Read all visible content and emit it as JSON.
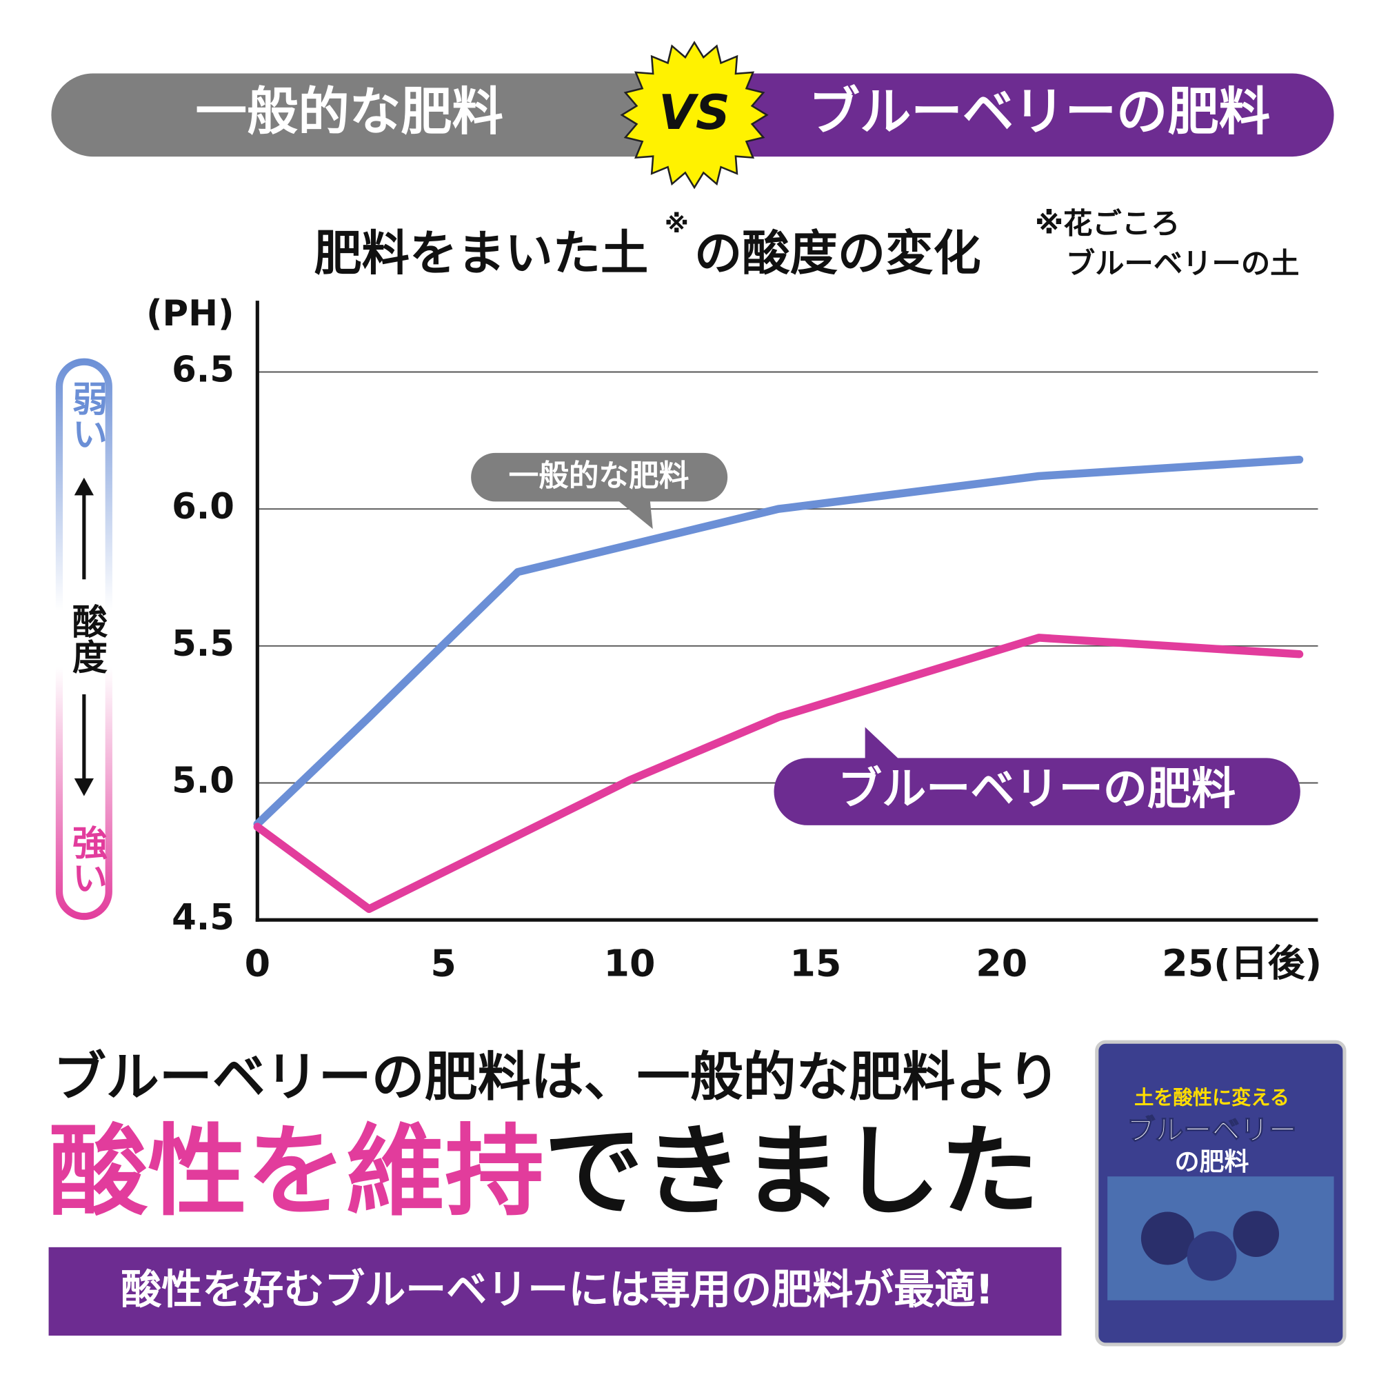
{
  "header": {
    "left": "一般的な肥料",
    "vs": "VS",
    "right": "ブルーベリーの肥料"
  },
  "note": [
    "※花ごころ",
    "ブルーベリーの土"
  ],
  "scale": {
    "weak": "弱い",
    "label": "酸度",
    "strong": "強い"
  },
  "chart_data": {
    "type": "line",
    "title": [
      "肥料をまいた土",
      "※",
      "の酸度の変化"
    ],
    "y_label": "(PH)",
    "x_label": "(日後)",
    "xlim": [
      0,
      28.5
    ],
    "xticks": [
      0,
      5,
      10,
      15,
      20,
      25
    ],
    "ylim": [
      4.5,
      6.76
    ],
    "yticks": [
      4.5,
      {
        "value": 5,
        "label": "5.0"
      },
      5.5,
      {
        "value": 6,
        "label": "6.0"
      },
      6.5
    ],
    "grid": true,
    "series": [
      {
        "name": "一般的な肥料",
        "color": "#6b8fd6",
        "x": [
          0,
          3,
          7,
          14,
          21,
          28
        ],
        "values": [
          4.85,
          5.24,
          5.77,
          6.0,
          6.12,
          6.18
        ]
      },
      {
        "name": "ブルーベリーの肥料",
        "color": "#e23c9c",
        "x": [
          0,
          3,
          10,
          14,
          21,
          28
        ],
        "values": [
          4.84,
          4.54,
          5.01,
          5.24,
          5.53,
          5.47
        ]
      }
    ]
  },
  "conclusion": {
    "line1": "ブルーベリーの肥料は、一般的な肥料より",
    "highlight": "酸性を維持",
    "rest": "できました",
    "banner": "酸性を好むブルーベリーには専用の肥料が最適!"
  },
  "product": {
    "tagline": "土を酸性に変える",
    "name": "ブルーベリー",
    "name2": "の肥料"
  }
}
